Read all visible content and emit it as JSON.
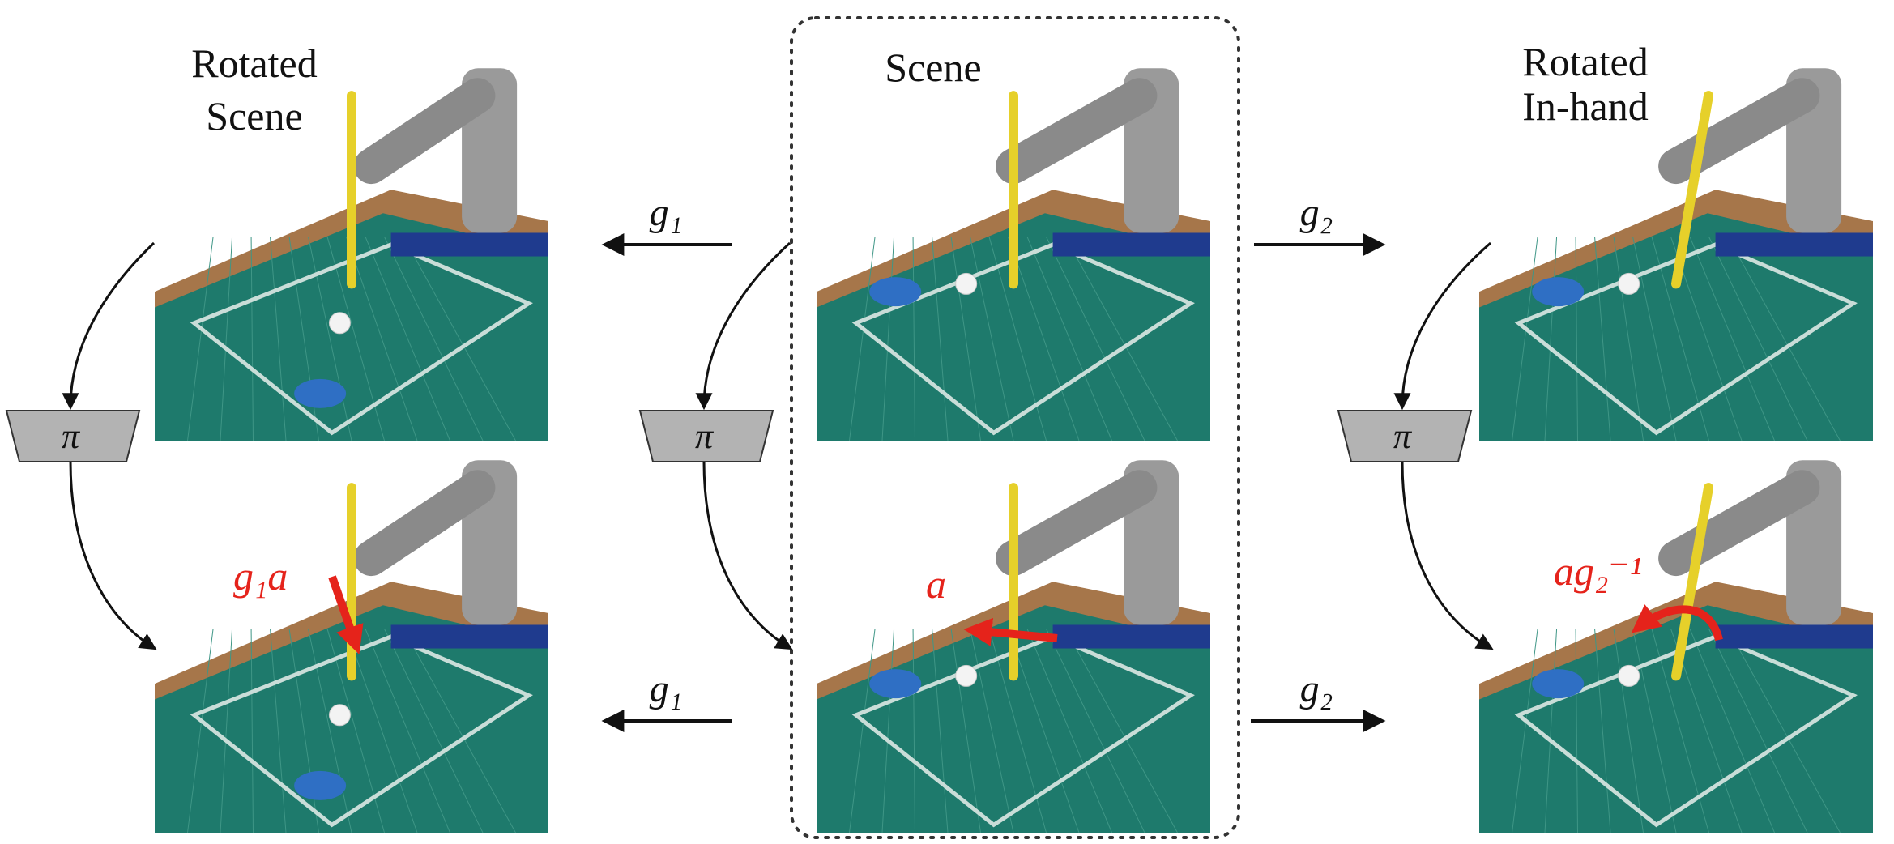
{
  "columns": [
    {
      "title_lines": [
        "Rotated",
        "Scene"
      ],
      "action_label": "g₁a"
    },
    {
      "title_lines": [
        "Scene"
      ],
      "action_label": "a"
    },
    {
      "title_lines": [
        "Rotated",
        "In-hand"
      ],
      "action_label": "ag₂⁻¹"
    }
  ],
  "policy_label": "π",
  "transforms": {
    "left": "g₁",
    "right": "g₂"
  }
}
